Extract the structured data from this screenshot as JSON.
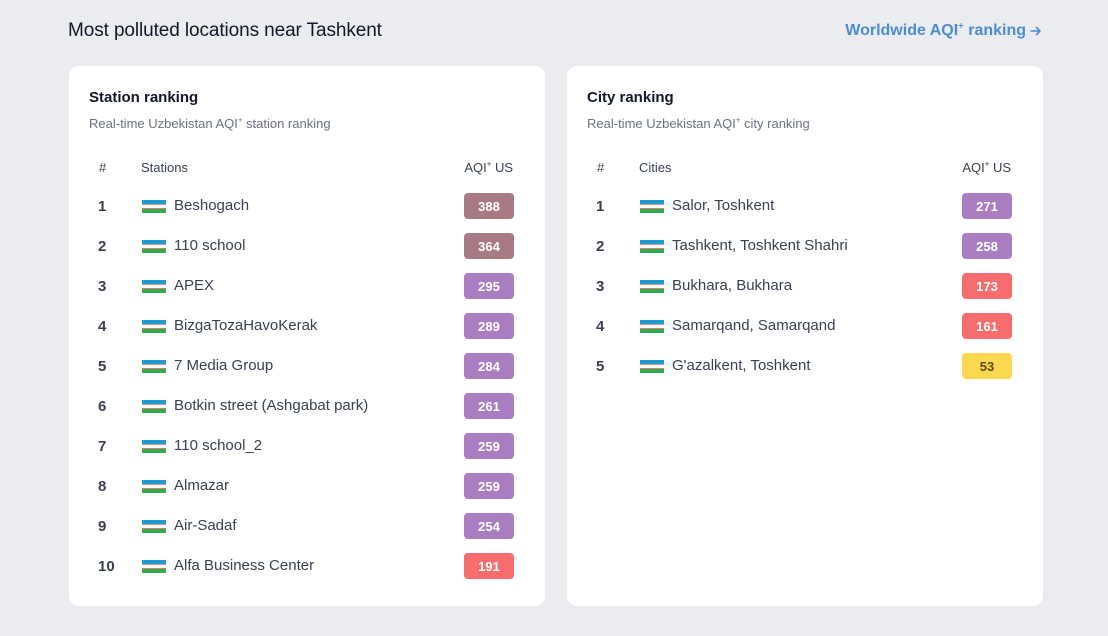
{
  "header": {
    "title": "Most polluted locations near Tashkent",
    "link_label": "Worldwide AQI",
    "link_sup": "+",
    "link_suffix": " ranking"
  },
  "colors": {
    "hazardous": "#a87b84",
    "very_unhealthy": "#a97dbf",
    "unhealthy": "#f76c6c",
    "moderate": "#fcd850",
    "link": "#4b8cd0"
  },
  "stations": {
    "title": "Station ranking",
    "subtitle_pre": "Real-time Uzbekistan AQI",
    "subtitle_sup": "+",
    "subtitle_post": " station ranking",
    "col_num": "#",
    "col_name": "Stations",
    "col_aqi_pre": "AQI",
    "col_aqi_sup": "+",
    "col_aqi_post": " US",
    "rows": [
      {
        "rank": "1",
        "name": "Beshogach",
        "aqi": "388",
        "color": "#a87b84",
        "text_color": "#ffffff"
      },
      {
        "rank": "2",
        "name": "110 school",
        "aqi": "364",
        "color": "#a87b84",
        "text_color": "#ffffff"
      },
      {
        "rank": "3",
        "name": "APEX",
        "aqi": "295",
        "color": "#a97dbf",
        "text_color": "#ffffff"
      },
      {
        "rank": "4",
        "name": "BizgaTozaHavoKerak",
        "aqi": "289",
        "color": "#a97dbf",
        "text_color": "#ffffff"
      },
      {
        "rank": "5",
        "name": "7 Media Group",
        "aqi": "284",
        "color": "#a97dbf",
        "text_color": "#ffffff"
      },
      {
        "rank": "6",
        "name": "Botkin street (Ashgabat park)",
        "aqi": "261",
        "color": "#a97dbf",
        "text_color": "#ffffff"
      },
      {
        "rank": "7",
        "name": "110 school_2",
        "aqi": "259",
        "color": "#a97dbf",
        "text_color": "#ffffff"
      },
      {
        "rank": "8",
        "name": "Almazar",
        "aqi": "259",
        "color": "#a97dbf",
        "text_color": "#ffffff"
      },
      {
        "rank": "9",
        "name": "Air-Sadaf",
        "aqi": "254",
        "color": "#a97dbf",
        "text_color": "#ffffff"
      },
      {
        "rank": "10",
        "name": "Alfa Business Center",
        "aqi": "191",
        "color": "#f76c6c",
        "text_color": "#ffffff"
      }
    ]
  },
  "cities": {
    "title": "City ranking",
    "subtitle_pre": "Real-time Uzbekistan AQI",
    "subtitle_sup": "+",
    "subtitle_post": " city ranking",
    "col_num": "#",
    "col_name": "Cities",
    "col_aqi_pre": "AQI",
    "col_aqi_sup": "+",
    "col_aqi_post": " US",
    "rows": [
      {
        "rank": "1",
        "name": "Salor, Toshkent",
        "aqi": "271",
        "color": "#a97dbf",
        "text_color": "#ffffff"
      },
      {
        "rank": "2",
        "name": "Tashkent, Toshkent Shahri",
        "aqi": "258",
        "color": "#a97dbf",
        "text_color": "#ffffff"
      },
      {
        "rank": "3",
        "name": "Bukhara, Bukhara",
        "aqi": "173",
        "color": "#f76c6c",
        "text_color": "#ffffff"
      },
      {
        "rank": "4",
        "name": "Samarqand, Samarqand",
        "aqi": "161",
        "color": "#f76c6c",
        "text_color": "#ffffff"
      },
      {
        "rank": "5",
        "name": "G'azalkent, Toshkent",
        "aqi": "53",
        "color": "#fcd850",
        "text_color": "#5a4a1a"
      }
    ]
  }
}
